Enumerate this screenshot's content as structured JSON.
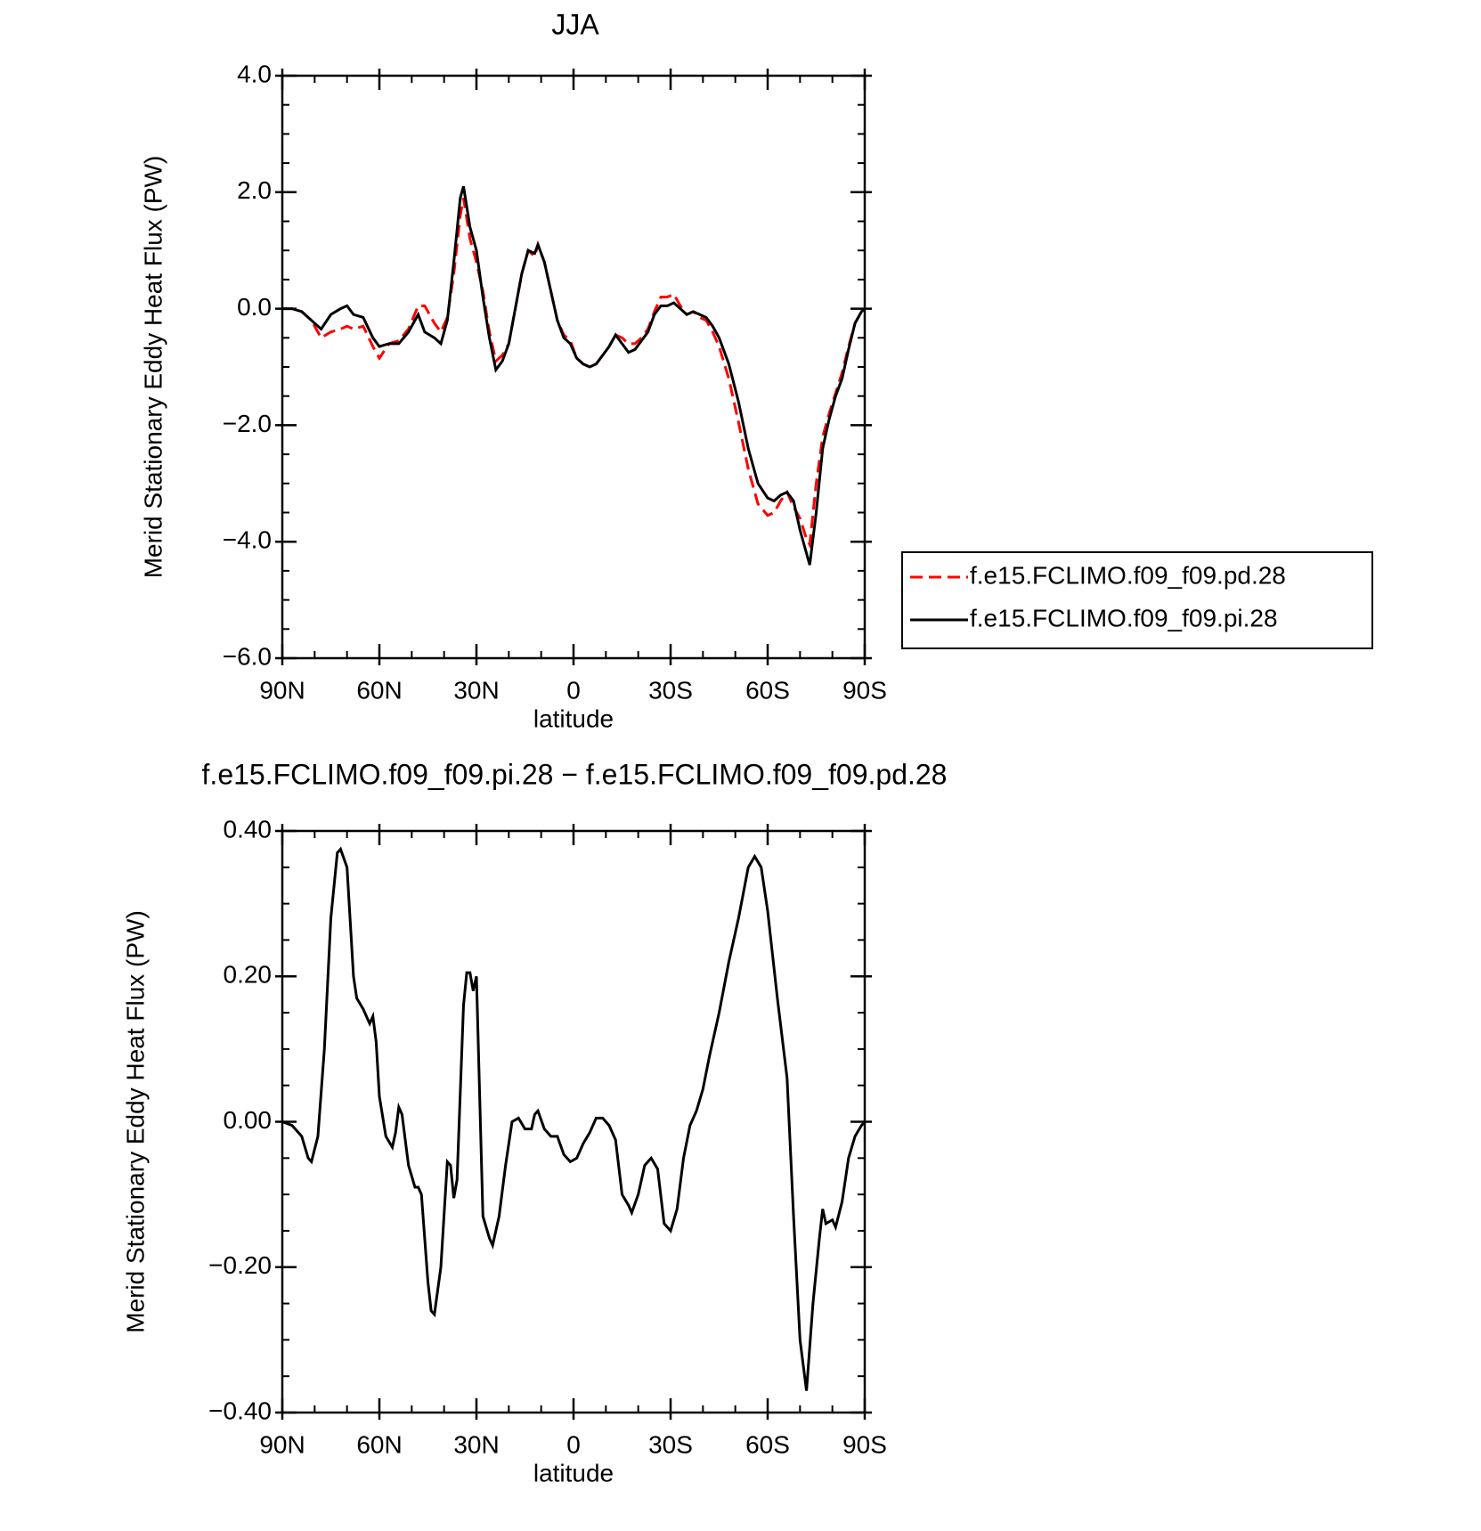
{
  "chart_data": [
    {
      "type": "line",
      "title": "JJA",
      "xlabel": "latitude",
      "ylabel": "Merid Stationary Eddy Heat Flux (PW)",
      "x": [
        90,
        87,
        84,
        81,
        78,
        75,
        72,
        70,
        68,
        65,
        62,
        60,
        57,
        54,
        51,
        48,
        46,
        43,
        41,
        39,
        37,
        35,
        34,
        32,
        30,
        28,
        26,
        24,
        22,
        20,
        18,
        16,
        14,
        12,
        11,
        9,
        7,
        5,
        3,
        1,
        -1,
        -3,
        -5,
        -7,
        -9,
        -11,
        -13,
        -15,
        -17,
        -19,
        -21,
        -23,
        -25,
        -27,
        -29,
        -31,
        -33,
        -35,
        -37,
        -39,
        -41,
        -43,
        -45,
        -48,
        -51,
        -54,
        -57,
        -60,
        -62,
        -64,
        -66,
        -68,
        -70,
        -72,
        -73,
        -75,
        -77,
        -79,
        -81,
        -83,
        -85,
        -87,
        -89,
        -90
      ],
      "series": [
        {
          "name": "f.e15.FCLIMO.f09_f09.pd.28",
          "color": "#ff0000",
          "dash": true,
          "values": [
            0,
            0,
            -0.05,
            -0.2,
            -0.5,
            -0.4,
            -0.35,
            -0.3,
            -0.35,
            -0.3,
            -0.65,
            -0.85,
            -0.6,
            -0.55,
            -0.35,
            0.05,
            0.05,
            -0.25,
            -0.4,
            -0.15,
            0.6,
            1.6,
            1.9,
            1.2,
            0.8,
            0.3,
            -0.4,
            -0.9,
            -0.8,
            -0.6,
            0,
            0.6,
            1.0,
            0.9,
            1.1,
            0.8,
            0.3,
            -0.2,
            -0.45,
            -0.55,
            -0.85,
            -0.95,
            -1.0,
            -0.95,
            -0.8,
            -0.65,
            -0.45,
            -0.5,
            -0.6,
            -0.6,
            -0.5,
            -0.35,
            -0.05,
            0.2,
            0.2,
            0.25,
            0.05,
            -0.1,
            -0.05,
            -0.15,
            -0.2,
            -0.4,
            -0.65,
            -1.2,
            -1.95,
            -2.75,
            -3.35,
            -3.55,
            -3.5,
            -3.3,
            -3.15,
            -3.4,
            -3.6,
            -3.95,
            -4.05,
            -3.0,
            -2.2,
            -1.8,
            -1.45,
            -1.1,
            -0.65,
            -0.25,
            -0.05,
            0
          ]
        },
        {
          "name": "f.e15.FCLIMO.f09_f09.pi.28",
          "color": "#000000",
          "dash": false,
          "values": [
            0,
            0,
            -0.05,
            -0.2,
            -0.35,
            -0.1,
            0,
            0.05,
            -0.1,
            -0.15,
            -0.5,
            -0.65,
            -0.6,
            -0.6,
            -0.4,
            -0.1,
            -0.4,
            -0.5,
            -0.6,
            -0.2,
            0.8,
            1.9,
            2.1,
            1.4,
            1.0,
            0.2,
            -0.5,
            -1.05,
            -0.9,
            -0.6,
            0,
            0.6,
            1.0,
            0.95,
            1.1,
            0.8,
            0.3,
            -0.2,
            -0.5,
            -0.6,
            -0.85,
            -0.95,
            -1.0,
            -0.95,
            -0.8,
            -0.65,
            -0.45,
            -0.6,
            -0.75,
            -0.7,
            -0.55,
            -0.4,
            -0.1,
            0.05,
            0.05,
            0.1,
            0,
            -0.1,
            -0.05,
            -0.1,
            -0.15,
            -0.3,
            -0.5,
            -0.95,
            -1.6,
            -2.4,
            -3.0,
            -3.25,
            -3.3,
            -3.2,
            -3.15,
            -3.3,
            -3.8,
            -4.2,
            -4.4,
            -3.5,
            -2.4,
            -1.9,
            -1.5,
            -1.2,
            -0.7,
            -0.25,
            -0.05,
            0
          ]
        }
      ],
      "xlim": [
        90,
        -90
      ],
      "xticks": [
        {
          "value": 90,
          "label": "90N"
        },
        {
          "value": 60,
          "label": "60N"
        },
        {
          "value": 30,
          "label": "30N"
        },
        0,
        {
          "value": -30,
          "label": "30S"
        },
        {
          "value": -60,
          "label": "60S"
        },
        {
          "value": -90,
          "label": "90S"
        }
      ],
      "xminorticks": [
        80,
        70,
        50,
        40,
        20,
        10,
        -10,
        -20,
        -40,
        -50,
        -70,
        -80
      ],
      "ylim": [
        -6,
        4
      ],
      "yticks": [
        {
          "value": 4,
          "label": "4.0"
        },
        {
          "value": 2,
          "label": "2.0"
        },
        {
          "value": 0,
          "label": "0.0"
        },
        {
          "value": -2,
          "label": "−2.0"
        },
        {
          "value": -4,
          "label": "−4.0"
        },
        {
          "value": -6,
          "label": "−6.0"
        }
      ],
      "yminorticks": [
        3.5,
        3,
        2.5,
        1.5,
        1,
        0.5,
        -0.5,
        -1,
        -1.5,
        -2.5,
        -3,
        -3.5,
        -4.5,
        -5,
        -5.5
      ],
      "legend": "right"
    },
    {
      "type": "line",
      "title": "f.e15.FCLIMO.f09_f09.pi.28 − f.e15.FCLIMO.f09_f09.pd.28",
      "xlabel": "latitude",
      "ylabel": "Merid Stationary Eddy Heat Flux (PW)",
      "x": [
        90,
        87,
        84,
        82,
        81,
        79,
        77,
        75,
        73,
        72,
        70,
        68,
        67,
        65,
        63,
        62,
        61,
        60,
        58,
        56,
        55,
        54,
        53,
        51,
        49,
        48,
        47,
        45,
        44,
        43,
        41,
        39,
        38,
        37,
        36,
        34,
        33,
        32,
        31,
        30,
        28,
        26,
        25,
        23,
        21,
        19,
        17,
        15,
        13,
        12,
        11,
        9,
        7,
        5,
        3,
        1,
        -1,
        -3,
        -5,
        -7,
        -9,
        -11,
        -13,
        -15,
        -17,
        -18,
        -20,
        -22,
        -24,
        -26,
        -28,
        -30,
        -32,
        -34,
        -36,
        -38,
        -40,
        -42,
        -45,
        -48,
        -51,
        -54,
        -56,
        -58,
        -60,
        -63,
        -66,
        -68,
        -70,
        -72,
        -74,
        -76,
        -77,
        -78,
        -80,
        -81,
        -83,
        -85,
        -87,
        -89,
        -90
      ],
      "series": [
        {
          "color": "#000000",
          "dash": false,
          "values": [
            0,
            -0.005,
            -0.02,
            -0.05,
            -0.055,
            -0.02,
            0.1,
            0.28,
            0.37,
            0.375,
            0.35,
            0.2,
            0.17,
            0.155,
            0.135,
            0.145,
            0.11,
            0.035,
            -0.02,
            -0.035,
            -0.015,
            0.02,
            0.01,
            -0.06,
            -0.09,
            -0.09,
            -0.1,
            -0.22,
            -0.26,
            -0.265,
            -0.2,
            -0.055,
            -0.06,
            -0.105,
            -0.08,
            0.16,
            0.205,
            0.205,
            0.18,
            0.2,
            -0.13,
            -0.16,
            -0.17,
            -0.13,
            -0.06,
            0,
            0.005,
            -0.01,
            -0.01,
            0.01,
            0.015,
            -0.01,
            -0.02,
            -0.02,
            -0.045,
            -0.055,
            -0.05,
            -0.03,
            -0.015,
            0.005,
            0.005,
            -0.005,
            -0.025,
            -0.1,
            -0.115,
            -0.125,
            -0.1,
            -0.06,
            -0.05,
            -0.065,
            -0.14,
            -0.15,
            -0.12,
            -0.05,
            -0.005,
            0.015,
            0.045,
            0.09,
            0.15,
            0.22,
            0.28,
            0.35,
            0.365,
            0.35,
            0.29,
            0.17,
            0.06,
            -0.13,
            -0.3,
            -0.37,
            -0.25,
            -0.16,
            -0.12,
            -0.14,
            -0.135,
            -0.145,
            -0.11,
            -0.05,
            -0.02,
            -0.005,
            0
          ]
        }
      ],
      "xlim": [
        90,
        -90
      ],
      "xticks": [
        {
          "value": 90,
          "label": "90N"
        },
        {
          "value": 60,
          "label": "60N"
        },
        {
          "value": 30,
          "label": "30N"
        },
        0,
        {
          "value": -30,
          "label": "30S"
        },
        {
          "value": -60,
          "label": "60S"
        },
        {
          "value": -90,
          "label": "90S"
        }
      ],
      "xminorticks": [
        80,
        70,
        50,
        40,
        20,
        10,
        -10,
        -20,
        -40,
        -50,
        -70,
        -80
      ],
      "ylim": [
        -0.4,
        0.4
      ],
      "yticks": [
        {
          "value": 0.4,
          "label": "0.40"
        },
        {
          "value": 0.2,
          "label": "0.20"
        },
        {
          "value": 0,
          "label": "0.00"
        },
        {
          "value": -0.2,
          "label": "−0.20"
        },
        {
          "value": -0.4,
          "label": "−0.40"
        }
      ],
      "yminorticks": [
        0.35,
        0.3,
        0.25,
        0.15,
        0.1,
        0.05,
        -0.05,
        -0.1,
        -0.15,
        -0.25,
        -0.3,
        -0.35
      ]
    }
  ]
}
